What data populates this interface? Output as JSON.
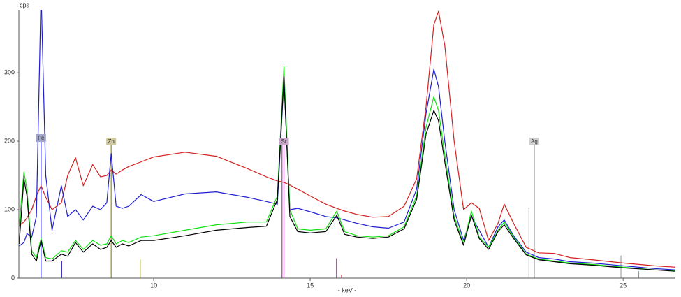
{
  "chart_data": {
    "type": "line",
    "y_label": "cps",
    "x_label": "- keV -",
    "xlim": [
      5.69,
      26.67
    ],
    "ylim": [
      0,
      392
    ],
    "xticks": [
      10,
      15,
      20,
      25
    ],
    "yticks": [
      0,
      100,
      200,
      300
    ],
    "x": [
      5.7,
      5.85,
      5.95,
      6.1,
      6.25,
      6.4,
      6.55,
      6.75,
      7.05,
      7.25,
      7.5,
      7.75,
      8.05,
      8.3,
      8.5,
      8.64,
      8.8,
      9.0,
      9.2,
      9.6,
      10,
      11,
      12,
      13,
      13.6,
      13.95,
      14.16,
      14.35,
      14.6,
      15.0,
      15.5,
      15.85,
      16.1,
      16.5,
      17.0,
      17.5,
      18.0,
      18.4,
      18.7,
      18.95,
      19.1,
      19.3,
      19.6,
      19.9,
      20.15,
      20.4,
      20.7,
      21.0,
      21.2,
      21.5,
      21.9,
      22.3,
      22.8,
      23.3,
      24,
      25,
      26,
      26.67
    ],
    "series": [
      {
        "color": "#d42020",
        "values": [
          77,
          82,
          88,
          100,
          120,
          135,
          118,
          100,
          110,
          150,
          176,
          135,
          166,
          148,
          150,
          158,
          152,
          158,
          163,
          170,
          177,
          184,
          178,
          160,
          148,
          142,
          140,
          136,
          130,
          120,
          108,
          102,
          98,
          93,
          89,
          90,
          105,
          145,
          250,
          370,
          390,
          340,
          200,
          100,
          110,
          102,
          55,
          80,
          108,
          80,
          45,
          37,
          36,
          30,
          27,
          22,
          18,
          16
        ]
      },
      {
        "color": "#1f1fd0",
        "values": [
          47,
          52,
          65,
          60,
          90,
          420,
          150,
          70,
          135,
          90,
          100,
          85,
          105,
          100,
          110,
          182,
          105,
          102,
          105,
          122,
          112,
          123,
          126,
          118,
          112,
          108,
          290,
          100,
          102,
          97,
          90,
          88,
          85,
          80,
          75,
          73,
          82,
          130,
          240,
          305,
          280,
          200,
          100,
          55,
          90,
          70,
          45,
          75,
          85,
          62,
          38,
          30,
          28,
          24,
          22,
          18,
          14,
          12
        ]
      },
      {
        "color": "#10e010",
        "values": [
          75,
          155,
          130,
          40,
          30,
          58,
          30,
          28,
          40,
          38,
          55,
          42,
          55,
          48,
          50,
          62,
          50,
          55,
          52,
          60,
          62,
          70,
          78,
          82,
          82,
          120,
          309,
          100,
          72,
          70,
          72,
          98,
          68,
          62,
          60,
          62,
          75,
          120,
          220,
          265,
          245,
          180,
          90,
          50,
          98,
          60,
          45,
          70,
          82,
          60,
          35,
          28,
          25,
          22,
          20,
          16,
          12,
          11
        ]
      },
      {
        "color": "#000000",
        "values": [
          50,
          145,
          120,
          35,
          25,
          55,
          25,
          25,
          35,
          32,
          52,
          38,
          50,
          42,
          45,
          55,
          45,
          50,
          47,
          55,
          55,
          62,
          70,
          74,
          76,
          115,
          294,
          90,
          68,
          66,
          68,
          92,
          64,
          60,
          58,
          60,
          72,
          115,
          210,
          245,
          230,
          170,
          85,
          48,
          92,
          58,
          42,
          68,
          78,
          58,
          34,
          27,
          24,
          21,
          19,
          15,
          12,
          10
        ]
      }
    ],
    "element_markers": [
      {
        "label": "Fe",
        "x": 6.4,
        "height": 200,
        "color": "#2020b0",
        "box": "#a0a4c8"
      },
      {
        "label": "Zn",
        "x": 8.64,
        "height": 195,
        "color": "#909020",
        "box": "#cfc89a"
      },
      {
        "label": "Sr",
        "x": 14.16,
        "height": 195,
        "color": "#902090",
        "box": "#c8a6c8"
      },
      {
        "label": "Ag",
        "x": 22.16,
        "height": 195,
        "color": "#909090",
        "box": "#d0d0d0"
      }
    ],
    "minor_lines": [
      {
        "x": 7.06,
        "height": 25,
        "color": "#2020b0"
      },
      {
        "x": 9.57,
        "height": 27,
        "color": "#909020"
      },
      {
        "x": 14.1,
        "height": 195,
        "color": "#902090"
      },
      {
        "x": 15.84,
        "height": 29,
        "color": "#902090"
      },
      {
        "x": 16.0,
        "height": 5,
        "color": "#d42020"
      },
      {
        "x": 21.99,
        "height": 103,
        "color": "#909090"
      },
      {
        "x": 24.93,
        "height": 33,
        "color": "#909090"
      },
      {
        "x": 25.5,
        "height": 10,
        "color": "#909090"
      }
    ]
  }
}
